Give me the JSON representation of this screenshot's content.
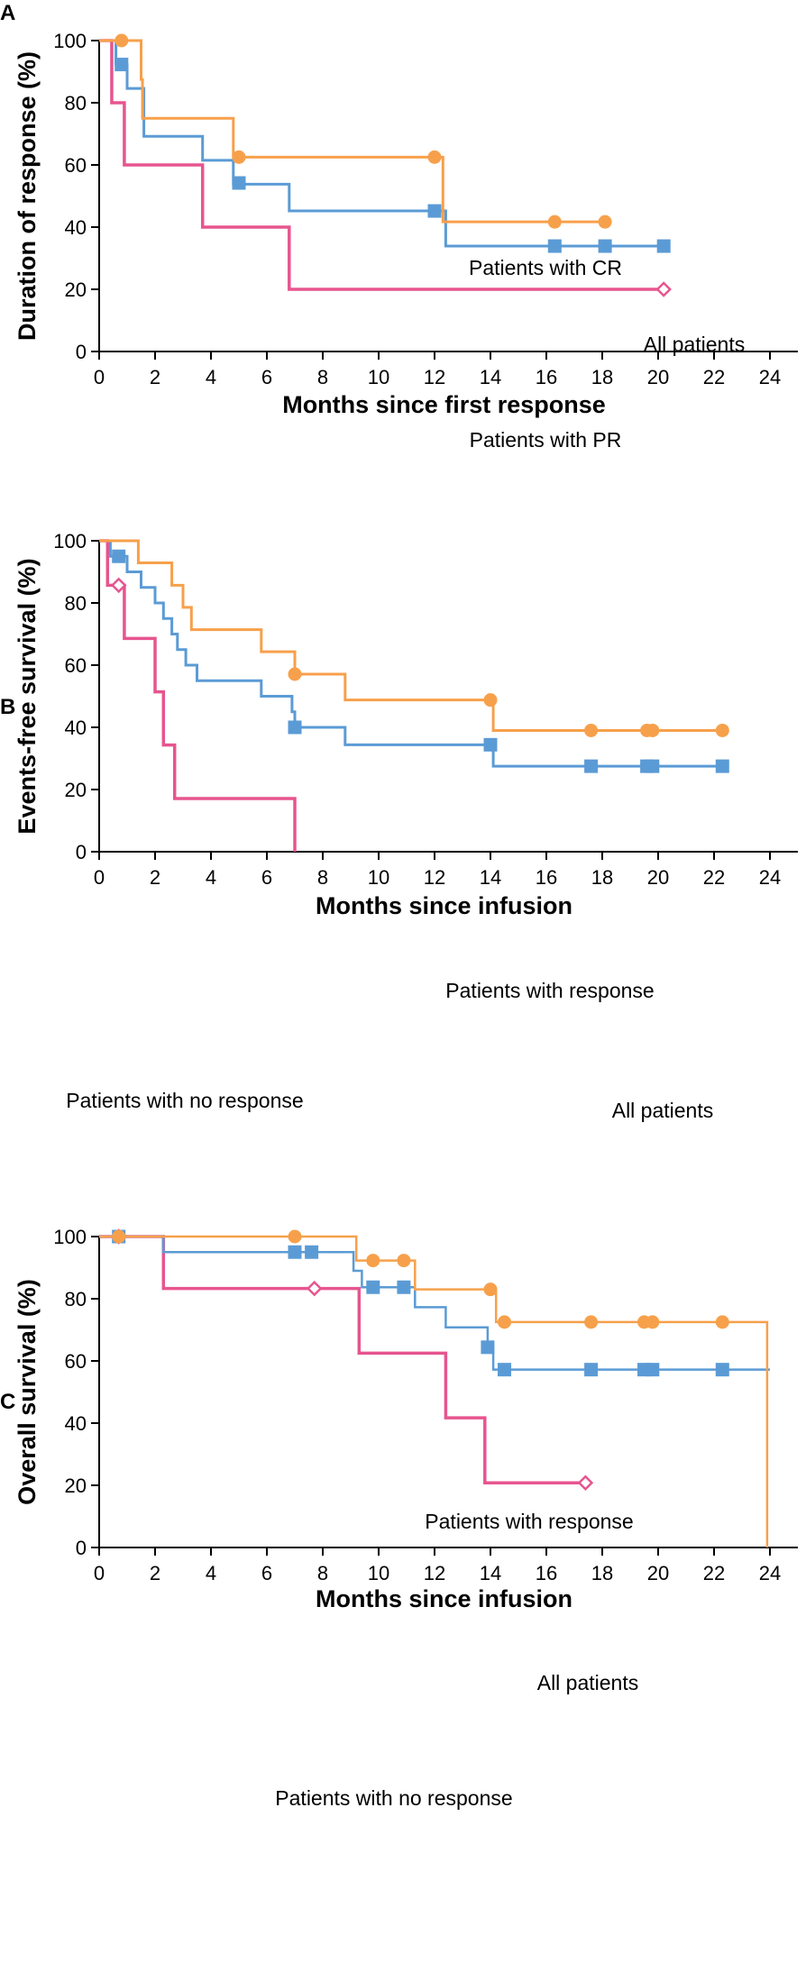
{
  "colors": {
    "orange": "#F7A04B",
    "blue": "#5B9BD5",
    "pink": "#E6558F",
    "axis": "#000000"
  },
  "chart_data": [
    {
      "panel": "A",
      "type": "line",
      "subtype": "kaplan-meier",
      "xlabel": "Months since first response",
      "ylabel": "Duration of response (%)",
      "xlim": [
        0,
        25
      ],
      "ylim": [
        0,
        100
      ],
      "xticks": [
        0,
        2,
        4,
        6,
        8,
        10,
        12,
        14,
        16,
        18,
        20,
        22,
        24
      ],
      "yticks": [
        0,
        20,
        40,
        60,
        80,
        100
      ],
      "series": [
        {
          "name": "Patients with CR",
          "label": "Patients with CR",
          "color": "#F7A04B",
          "marker": "circle",
          "width": 3,
          "steps": [
            [
              0,
              100
            ],
            [
              1.5,
              87.5
            ],
            [
              1.55,
              75
            ],
            [
              4.8,
              62.5
            ],
            [
              12.3,
              41.7
            ],
            [
              18.1,
              41.7
            ]
          ],
          "markers": [
            [
              0.8,
              100
            ],
            [
              5.0,
              62.5
            ],
            [
              12.0,
              62.5
            ],
            [
              16.3,
              41.7
            ],
            [
              18.1,
              41.7
            ]
          ]
        },
        {
          "name": "All patients",
          "label": "All patients",
          "color": "#5B9BD5",
          "marker": "square",
          "width": 3,
          "steps": [
            [
              0,
              100
            ],
            [
              0.6,
              92.3
            ],
            [
              1.0,
              84.6
            ],
            [
              1.6,
              69.2
            ],
            [
              3.7,
              61.5
            ],
            [
              4.8,
              53.8
            ],
            [
              6.8,
              45.2
            ],
            [
              12.4,
              33.9
            ],
            [
              20.2,
              33.9
            ]
          ],
          "markers": [
            [
              0.8,
              92.3
            ],
            [
              5.0,
              54.2
            ],
            [
              12.0,
              45.2
            ],
            [
              16.3,
              33.9
            ],
            [
              18.1,
              33.9
            ],
            [
              20.2,
              33.9
            ]
          ]
        },
        {
          "name": "Patients with PR",
          "label": "Patients with PR",
          "color": "#E6558F",
          "marker": "diamond-open",
          "width": 3.5,
          "steps": [
            [
              0,
              100
            ],
            [
              0.45,
              80
            ],
            [
              0.9,
              60
            ],
            [
              3.7,
              40
            ],
            [
              6.8,
              20
            ],
            [
              20.2,
              20
            ]
          ],
          "markers": [
            [
              20.2,
              20
            ]
          ]
        }
      ]
    },
    {
      "panel": "B",
      "type": "line",
      "subtype": "kaplan-meier",
      "xlabel": "Months since infusion",
      "ylabel": "Events-free survival (%)",
      "xlim": [
        0,
        25
      ],
      "ylim": [
        0,
        100
      ],
      "xticks": [
        0,
        2,
        4,
        6,
        8,
        10,
        12,
        14,
        16,
        18,
        20,
        22,
        24
      ],
      "yticks": [
        0,
        20,
        40,
        60,
        80,
        100
      ],
      "series": [
        {
          "name": "Patients with response",
          "label": "Patients with response",
          "color": "#F7A04B",
          "marker": "circle",
          "width": 3,
          "steps": [
            [
              0,
              100
            ],
            [
              1.4,
              92.9
            ],
            [
              2.6,
              85.7
            ],
            [
              3.0,
              78.6
            ],
            [
              3.3,
              71.4
            ],
            [
              5.8,
              64.3
            ],
            [
              7.0,
              57.1
            ],
            [
              8.8,
              48.8
            ],
            [
              14.1,
              39.0
            ],
            [
              22.3,
              39.0
            ]
          ],
          "markers": [
            [
              7.0,
              57.1
            ],
            [
              14.0,
              48.8
            ],
            [
              17.6,
              39.0
            ],
            [
              19.6,
              39.0
            ],
            [
              19.8,
              39.0
            ],
            [
              22.3,
              39.0
            ]
          ]
        },
        {
          "name": "All patients",
          "label": "All patients",
          "color": "#5B9BD5",
          "marker": "square",
          "width": 3,
          "steps": [
            [
              0,
              100
            ],
            [
              0.4,
              95
            ],
            [
              1.0,
              90
            ],
            [
              1.5,
              85
            ],
            [
              2.0,
              80
            ],
            [
              2.3,
              75
            ],
            [
              2.6,
              70
            ],
            [
              2.8,
              65
            ],
            [
              3.1,
              60
            ],
            [
              3.5,
              55
            ],
            [
              5.8,
              50
            ],
            [
              6.9,
              45
            ],
            [
              7.0,
              40
            ],
            [
              8.8,
              34.4
            ],
            [
              14.1,
              27.5
            ],
            [
              22.3,
              27.5
            ]
          ],
          "markers": [
            [
              0.7,
              95
            ],
            [
              7.0,
              40
            ],
            [
              14.0,
              34.4
            ],
            [
              17.6,
              27.5
            ],
            [
              19.6,
              27.5
            ],
            [
              19.8,
              27.5
            ],
            [
              22.3,
              27.5
            ]
          ]
        },
        {
          "name": "Patients with no response",
          "label": "Patients with no response",
          "color": "#E6558F",
          "marker": "diamond-open",
          "width": 3.5,
          "steps": [
            [
              0,
              100
            ],
            [
              0.3,
              85.7
            ],
            [
              0.9,
              68.6
            ],
            [
              2.0,
              51.4
            ],
            [
              2.3,
              34.3
            ],
            [
              2.7,
              17.1
            ],
            [
              7.0,
              17.1
            ],
            [
              7.0,
              0
            ]
          ],
          "markers": [
            [
              0.7,
              85.7
            ]
          ]
        }
      ]
    },
    {
      "panel": "C",
      "type": "line",
      "subtype": "kaplan-meier",
      "xlabel": "Months since infusion",
      "ylabel": "Overall survival (%)",
      "xlim": [
        0,
        25
      ],
      "ylim": [
        0,
        100
      ],
      "xticks": [
        0,
        2,
        4,
        6,
        8,
        10,
        12,
        14,
        16,
        18,
        20,
        22,
        24
      ],
      "yticks": [
        0,
        20,
        40,
        60,
        80,
        100
      ],
      "series": [
        {
          "name": "Patients with response",
          "label": "Patients with response",
          "color": "#F7A04B",
          "marker": "circle",
          "width": 2.5,
          "steps": [
            [
              0,
              100
            ],
            [
              9.2,
              92.3
            ],
            [
              11.3,
              83
            ],
            [
              14.2,
              72.5
            ],
            [
              23.9,
              72.5
            ],
            [
              23.9,
              0
            ]
          ],
          "markers": [
            [
              0.7,
              100
            ],
            [
              7.0,
              100
            ],
            [
              9.8,
              92.3
            ],
            [
              10.9,
              92.3
            ],
            [
              14.0,
              83
            ],
            [
              14.5,
              72.5
            ],
            [
              17.6,
              72.5
            ],
            [
              19.5,
              72.5
            ],
            [
              19.8,
              72.5
            ],
            [
              22.3,
              72.5
            ]
          ]
        },
        {
          "name": "All patients",
          "label": "All patients",
          "color": "#5B9BD5",
          "marker": "square",
          "width": 2.5,
          "steps": [
            [
              0,
              100
            ],
            [
              2.3,
              95
            ],
            [
              9.1,
              89
            ],
            [
              9.4,
              83.7
            ],
            [
              11.3,
              77.3
            ],
            [
              12.4,
              70.8
            ],
            [
              13.9,
              64.4
            ],
            [
              14.1,
              57.2
            ],
            [
              24.0,
              57.2
            ]
          ],
          "markers": [
            [
              0.7,
              100
            ],
            [
              7.0,
              95
            ],
            [
              7.6,
              95
            ],
            [
              9.8,
              83.7
            ],
            [
              10.9,
              83.7
            ],
            [
              13.9,
              64.4
            ],
            [
              14.5,
              57.2
            ],
            [
              17.6,
              57.2
            ],
            [
              19.5,
              57.2
            ],
            [
              19.8,
              57.2
            ],
            [
              22.3,
              57.2
            ]
          ]
        },
        {
          "name": "Patients with no response",
          "label": "Patients with no response",
          "color": "#E6558F",
          "marker": "diamond-open",
          "width": 3.5,
          "steps": [
            [
              0,
              100
            ],
            [
              2.3,
              83.3
            ],
            [
              9.3,
              62.5
            ],
            [
              12.4,
              41.7
            ],
            [
              13.8,
              20.8
            ],
            [
              17.4,
              20.8
            ]
          ],
          "markers": [
            [
              0.7,
              100
            ],
            [
              7.7,
              83.3
            ],
            [
              17.4,
              20.8
            ]
          ]
        }
      ]
    }
  ]
}
